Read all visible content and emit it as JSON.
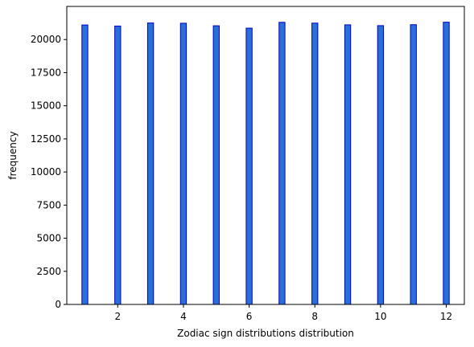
{
  "chart_data": {
    "type": "bar",
    "title": "",
    "xlabel": "Zodiac sign distributions distribution",
    "ylabel": "frequency",
    "x": [
      1,
      2,
      3,
      4,
      5,
      6,
      7,
      8,
      9,
      10,
      11,
      12
    ],
    "values": [
      21100,
      21020,
      21250,
      21230,
      21040,
      20860,
      21300,
      21240,
      21110,
      21050,
      21120,
      21310
    ],
    "xlim": [
      0.45,
      12.55
    ],
    "ylim": [
      0,
      22500
    ],
    "xticks": [
      2,
      4,
      6,
      8,
      10,
      12
    ],
    "yticks": [
      0,
      2500,
      5000,
      7500,
      10000,
      12500,
      15000,
      17500,
      20000
    ],
    "bar_width": 0.18,
    "grid": false,
    "colors": {
      "bar_fill": "#2a6fd6",
      "bar_edge": "#0000cc"
    }
  }
}
